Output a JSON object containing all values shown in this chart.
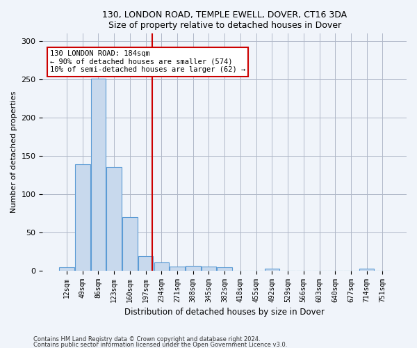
{
  "title1": "130, LONDON ROAD, TEMPLE EWELL, DOVER, CT16 3DA",
  "title2": "Size of property relative to detached houses in Dover",
  "xlabel": "Distribution of detached houses by size in Dover",
  "ylabel": "Number of detached properties",
  "bin_labels": [
    "12sqm",
    "49sqm",
    "86sqm",
    "123sqm",
    "160sqm",
    "197sqm",
    "234sqm",
    "271sqm",
    "308sqm",
    "345sqm",
    "382sqm",
    "418sqm",
    "455sqm",
    "492sqm",
    "529sqm",
    "566sqm",
    "603sqm",
    "640sqm",
    "677sqm",
    "714sqm",
    "751sqm"
  ],
  "bar_heights": [
    4,
    139,
    251,
    135,
    70,
    19,
    11,
    5,
    6,
    5,
    4,
    0,
    0,
    2,
    0,
    0,
    0,
    0,
    0,
    2,
    0
  ],
  "bar_color": "#c8d9ed",
  "bar_edge_color": "#5b9bd5",
  "property_line_x": 5.43,
  "annotation_text": "130 LONDON ROAD: 184sqm\n← 90% of detached houses are smaller (574)\n10% of semi-detached houses are larger (62) →",
  "annotation_box_color": "#ffffff",
  "annotation_box_edge": "#cc0000",
  "line_color": "#cc0000",
  "ylim": [
    0,
    310
  ],
  "footer1": "Contains HM Land Registry data © Crown copyright and database right 2024.",
  "footer2": "Contains public sector information licensed under the Open Government Licence v3.0.",
  "bg_color": "#f0f4fa"
}
